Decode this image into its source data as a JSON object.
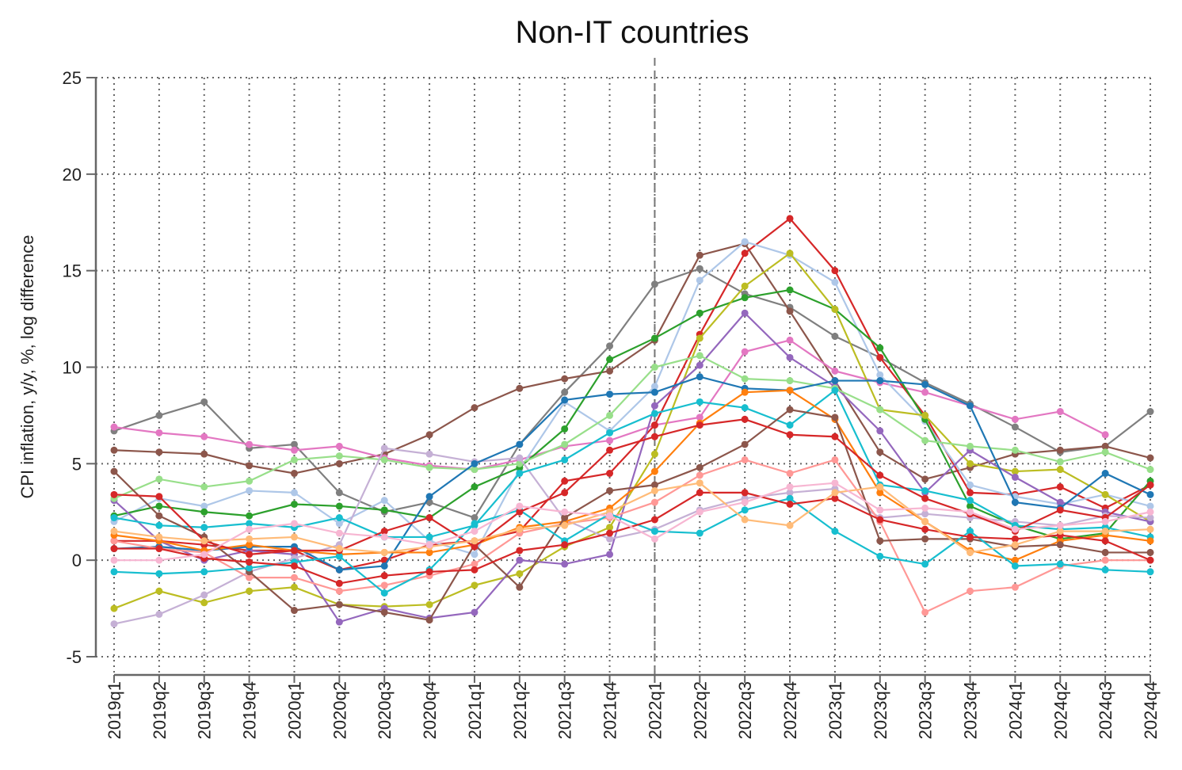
{
  "chart_data": {
    "type": "line",
    "title": "Non-IT countries",
    "ylabel": "CPI inflation, y/y, %, log difference",
    "xlabel": "",
    "ylim": [
      -5,
      25
    ],
    "yticks": [
      -5,
      0,
      5,
      10,
      15,
      20,
      25
    ],
    "grid": true,
    "legend": "none",
    "reference_line": {
      "x": "2022q1",
      "style": "dashed"
    },
    "categories": [
      "2019q1",
      "2019q2",
      "2019q3",
      "2019q4",
      "2020q1",
      "2020q2",
      "2020q3",
      "2020q4",
      "2021q1",
      "2021q2",
      "2021q3",
      "2021q4",
      "2022q1",
      "2022q2",
      "2022q3",
      "2022q4",
      "2023q1",
      "2023q2",
      "2023q3",
      "2023q4",
      "2024q1",
      "2024q2",
      "2024q3",
      "2024q4"
    ],
    "series": [
      {
        "color": "#7f7f7f",
        "values": [
          6.7,
          7.5,
          8.2,
          5.8,
          6.0,
          3.5,
          2.5,
          3.0,
          2.2,
          6.0,
          8.7,
          11.1,
          14.3,
          15.1,
          13.8,
          13.1,
          11.6,
          10.5,
          9.2,
          8.1,
          6.9,
          5.6,
          5.9,
          7.7
        ]
      },
      {
        "color": "#8c564b",
        "values": [
          5.7,
          5.6,
          5.5,
          4.9,
          4.5,
          5.0,
          5.5,
          6.5,
          7.9,
          8.9,
          9.4,
          9.8,
          11.4,
          15.8,
          16.4,
          12.9,
          9.3,
          5.6,
          4.2,
          4.8,
          5.5,
          5.7,
          5.9,
          5.3
        ]
      },
      {
        "color": "#e377c2",
        "values": [
          6.9,
          6.6,
          6.4,
          6.0,
          5.7,
          5.9,
          5.3,
          4.9,
          4.7,
          5.2,
          5.9,
          6.2,
          7.0,
          7.4,
          10.8,
          11.4,
          9.8,
          9.2,
          8.7,
          8.0,
          7.3,
          7.7,
          6.5,
          null
        ]
      },
      {
        "color": "#d62728",
        "values": [
          1.0,
          1.0,
          0.8,
          0.5,
          0.5,
          -0.5,
          0.0,
          0.8,
          1.0,
          1.5,
          4.1,
          4.5,
          7.0,
          11.7,
          15.9,
          17.7,
          15.0,
          10.5,
          7.5,
          3.5,
          3.4,
          3.8,
          2.7,
          3.9
        ]
      },
      {
        "color": "#aec7e8",
        "values": [
          2.0,
          3.2,
          2.8,
          3.6,
          3.5,
          1.9,
          3.1,
          1.0,
          0.3,
          4.7,
          8.2,
          6.7,
          9.0,
          14.5,
          16.5,
          15.8,
          14.4,
          9.6,
          7.2,
          3.9,
          3.3,
          2.9,
          3.4,
          2.8
        ]
      },
      {
        "color": "#2ca02c",
        "values": [
          2.3,
          2.8,
          2.5,
          2.3,
          2.9,
          2.8,
          2.6,
          2.2,
          3.8,
          4.8,
          6.8,
          10.4,
          11.5,
          12.8,
          13.6,
          14.0,
          13.0,
          11.0,
          7.3,
          2.8,
          1.8,
          1.1,
          1.4,
          4.1
        ]
      },
      {
        "color": "#bcbd22",
        "values": [
          -2.5,
          -1.6,
          -2.2,
          -1.6,
          -1.4,
          -2.3,
          -2.4,
          -2.3,
          -1.3,
          -0.7,
          0.7,
          1.7,
          5.5,
          11.5,
          14.2,
          15.9,
          13.0,
          7.8,
          7.5,
          5.0,
          4.6,
          4.7,
          3.4,
          2.0
        ]
      },
      {
        "color": "#9467bd",
        "values": [
          3.1,
          1.0,
          0.0,
          0.5,
          0.3,
          -3.2,
          -2.5,
          -3.0,
          -2.7,
          0.0,
          -0.2,
          0.3,
          8.0,
          10.1,
          12.8,
          10.5,
          9.0,
          6.7,
          3.5,
          5.7,
          4.3,
          3.0,
          2.5,
          2.0
        ]
      },
      {
        "color": "#98df8a",
        "values": [
          3.2,
          4.2,
          3.8,
          4.1,
          5.2,
          5.4,
          5.2,
          4.8,
          4.7,
          5.0,
          6.0,
          7.5,
          10.0,
          10.6,
          9.4,
          9.3,
          8.9,
          7.8,
          6.2,
          5.9,
          5.7,
          5.1,
          5.6,
          4.7
        ]
      },
      {
        "color": "#c5b0d5",
        "values": [
          -3.3,
          -2.8,
          -1.8,
          -0.6,
          0.1,
          0.8,
          5.8,
          5.5,
          5.1,
          5.3,
          2.1,
          1.1,
          1.6,
          2.6,
          3.2,
          3.5,
          3.7,
          2.2,
          2.4,
          2.2,
          2.0,
          1.8,
          2.3,
          2.2
        ]
      },
      {
        "color": "#1f77b4",
        "values": [
          0.6,
          0.7,
          0.5,
          0.7,
          0.7,
          -0.5,
          -0.3,
          3.3,
          5.0,
          6.0,
          8.3,
          8.6,
          8.7,
          9.5,
          8.9,
          8.8,
          9.3,
          9.3,
          9.1,
          8.0,
          3.0,
          2.7,
          4.5,
          3.4
        ]
      },
      {
        "color": "#17becf",
        "values": [
          2.2,
          1.8,
          1.7,
          1.9,
          1.7,
          2.2,
          1.2,
          1.2,
          1.8,
          4.5,
          5.2,
          6.6,
          7.6,
          8.2,
          7.9,
          7.0,
          8.8,
          3.9,
          3.6,
          3.1,
          1.8,
          1.6,
          1.7,
          1.2
        ]
      },
      {
        "color": "#ff9896",
        "values": [
          1.0,
          0.6,
          0.4,
          -0.9,
          -0.9,
          -1.6,
          -1.3,
          -0.8,
          -0.2,
          1.4,
          1.9,
          2.2,
          3.0,
          4.4,
          5.2,
          4.5,
          5.2,
          2.0,
          -2.7,
          -1.6,
          -1.4,
          -0.3,
          0.0,
          0.0
        ]
      },
      {
        "color": "#ff7f0e",
        "values": [
          1.3,
          1.0,
          0.5,
          0.8,
          0.5,
          0.3,
          0.4,
          0.4,
          0.8,
          1.7,
          2.0,
          2.7,
          4.6,
          7.1,
          8.7,
          8.8,
          7.3,
          3.5,
          2.0,
          0.5,
          0.0,
          1.0,
          1.3,
          1.0
        ]
      },
      {
        "color": "#8c564b",
        "values": [
          4.6,
          2.3,
          1.2,
          -0.6,
          -2.6,
          -2.3,
          -2.7,
          -3.1,
          0.8,
          -1.4,
          2.2,
          3.6,
          3.9,
          4.8,
          6.0,
          7.8,
          7.4,
          1.0,
          1.1,
          1.1,
          0.7,
          0.8,
          0.4,
          0.4
        ]
      },
      {
        "color": "#17becf",
        "values": [
          -0.6,
          -0.7,
          -0.6,
          -0.4,
          -0.1,
          0.2,
          -1.7,
          -0.5,
          1.9,
          2.6,
          1.0,
          2.4,
          1.5,
          1.4,
          2.6,
          3.2,
          1.5,
          0.2,
          -0.2,
          1.5,
          -0.3,
          -0.2,
          -0.5,
          -0.6
        ]
      },
      {
        "color": "#d62728",
        "values": [
          0.6,
          0.6,
          0.1,
          -0.1,
          -0.3,
          -1.2,
          -0.8,
          -0.6,
          -0.5,
          0.5,
          0.8,
          1.4,
          2.1,
          3.5,
          3.5,
          2.9,
          3.2,
          2.1,
          1.6,
          1.2,
          1.1,
          1.3,
          1.0,
          0.0
        ]
      },
      {
        "color": "#d62728",
        "values": [
          3.4,
          3.3,
          1.0,
          0.3,
          0.5,
          0.5,
          1.5,
          2.2,
          0.7,
          2.5,
          3.5,
          5.7,
          6.4,
          7.0,
          7.3,
          6.5,
          6.4,
          4.4,
          3.2,
          2.4,
          1.5,
          2.6,
          2.2,
          3.9
        ]
      },
      {
        "color": "#ffbb78",
        "values": [
          1.5,
          1.2,
          1.0,
          1.1,
          1.2,
          0.6,
          0.4,
          0.7,
          1.0,
          1.6,
          1.8,
          2.5,
          3.6,
          4.0,
          2.1,
          1.8,
          3.5,
          3.8,
          2.0,
          0.4,
          0.8,
          1.5,
          1.5,
          1.6
        ]
      },
      {
        "color": "#f7b6d2",
        "values": [
          0.0,
          0.0,
          0.3,
          1.6,
          1.9,
          1.4,
          1.2,
          0.8,
          1.5,
          2.8,
          2.5,
          2.3,
          1.1,
          2.5,
          3.0,
          3.8,
          4.0,
          2.6,
          2.7,
          2.5,
          1.6,
          1.8,
          2.0,
          2.5
        ]
      }
    ]
  }
}
